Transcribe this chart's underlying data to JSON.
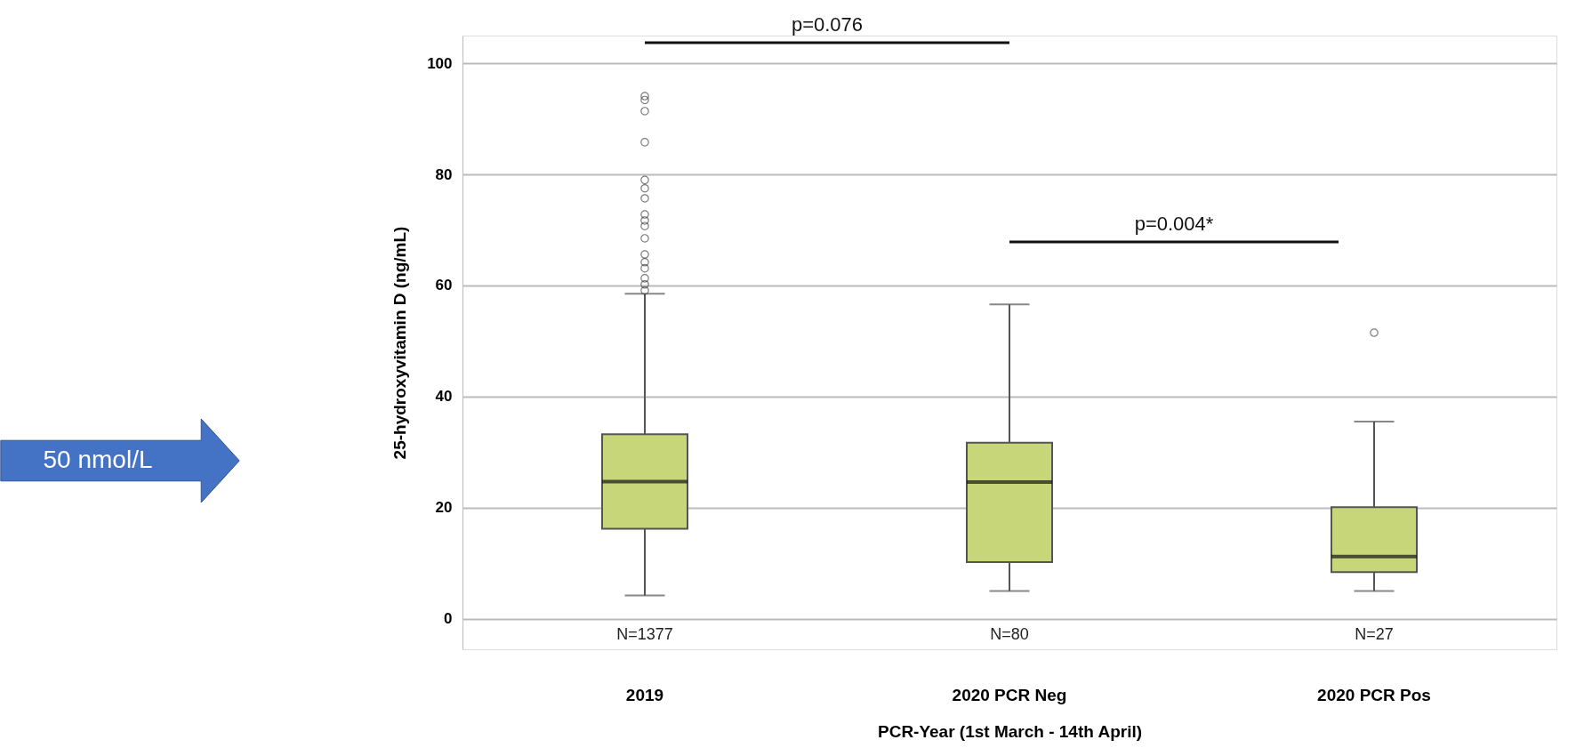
{
  "chart_data": {
    "type": "box",
    "xlabel": "PCR-Year (1st March - 14th April)",
    "ylabel": "25-hydroxyvitamin D (ng/mL)",
    "categories": [
      "2019",
      "2020 PCR Neg",
      "2020 PCR Pos"
    ],
    "boxes": [
      {
        "low": 4.2,
        "q1": 16.2,
        "median": 24.7,
        "q3": 33.2,
        "high": 58.5,
        "outliers": [
          59.1,
          60.2,
          61.3,
          63.1,
          64.2,
          65.6,
          68.5,
          70.7,
          71.7,
          72.8,
          75.7,
          77.5,
          79.0,
          85.8,
          91.4,
          93.4,
          94.1
        ]
      },
      {
        "low": 5.0,
        "q1": 10.2,
        "median": 24.6,
        "q3": 31.7,
        "high": 56.6
      },
      {
        "low": 5.0,
        "q1": 8.4,
        "median": 11.2,
        "q3": 20.1,
        "high": 35.5,
        "outliers": [
          51.5
        ]
      }
    ],
    "color": "#c8d67a",
    "ylim": [
      -5.5,
      105
    ],
    "yticks": [
      0,
      20,
      40,
      60,
      80,
      100
    ],
    "grid": "y",
    "annotations": [
      "p=0.076",
      "p=0.004*",
      "N=1377",
      "N=80",
      "N=27",
      "50 nmol/L"
    ]
  }
}
